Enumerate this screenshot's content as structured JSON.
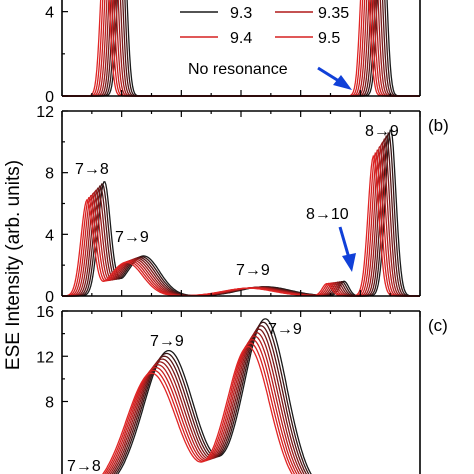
{
  "colors": {
    "black": "#1a1a1a",
    "red": "#d62020",
    "arrow": "#1040d8"
  },
  "chart_data": {
    "type": "line",
    "ylabel": "ESE Intensity (arb. units)",
    "legend": {
      "placement": "top-center",
      "entries": [
        {
          "name": "9.3",
          "color": "#1a1a1a"
        },
        {
          "name": "9.35",
          "color": "#b01818"
        },
        {
          "name": "9.4",
          "color": "#d62020"
        },
        {
          "name": "9.5",
          "color": "#d62020"
        }
      ]
    },
    "series_count": 9,
    "x_shift_per_series": 0.006,
    "panels": [
      {
        "id": "a",
        "label": "",
        "ylim": [
          0,
          5.5
        ],
        "yticks": [
          0,
          4
        ],
        "peaks": [
          {
            "x": 0.12,
            "height": 9.0,
            "width": 0.012
          },
          {
            "x": 0.846,
            "height": 9.0,
            "width": 0.012
          }
        ],
        "annotations": [
          {
            "text": "No resonance",
            "arrow": true
          }
        ]
      },
      {
        "id": "b",
        "label": "(b)",
        "ylim": [
          0,
          12
        ],
        "yticks": [
          0,
          4,
          8,
          12
        ],
        "peaks": [
          {
            "x": 0.07,
            "height": 7.3,
            "width": 0.017
          },
          {
            "x": 0.18,
            "height": 2.6,
            "width": 0.045
          },
          {
            "x": 0.52,
            "height": 0.6,
            "width": 0.07
          },
          {
            "x": 0.74,
            "height": 0.95,
            "width": 0.013
          },
          {
            "x": 0.87,
            "height": 10.8,
            "width": 0.015
          }
        ],
        "annotations": [
          {
            "text": "7→8"
          },
          {
            "text": "7→9"
          },
          {
            "text": "7→9"
          },
          {
            "text": "8→10",
            "arrow": true
          },
          {
            "text": "8→9"
          }
        ]
      },
      {
        "id": "c",
        "label": "(c)",
        "ylim": [
          0,
          16
        ],
        "yticks": [
          8,
          12,
          16
        ],
        "peaks": [
          {
            "x": 0.25,
            "height": 12.5,
            "width": 0.07
          },
          {
            "x": 0.52,
            "height": 15.3,
            "width": 0.06
          }
        ],
        "annotations": [
          {
            "text": "7→9"
          },
          {
            "text": "7→9"
          },
          {
            "text": "7→8"
          }
        ]
      }
    ]
  }
}
